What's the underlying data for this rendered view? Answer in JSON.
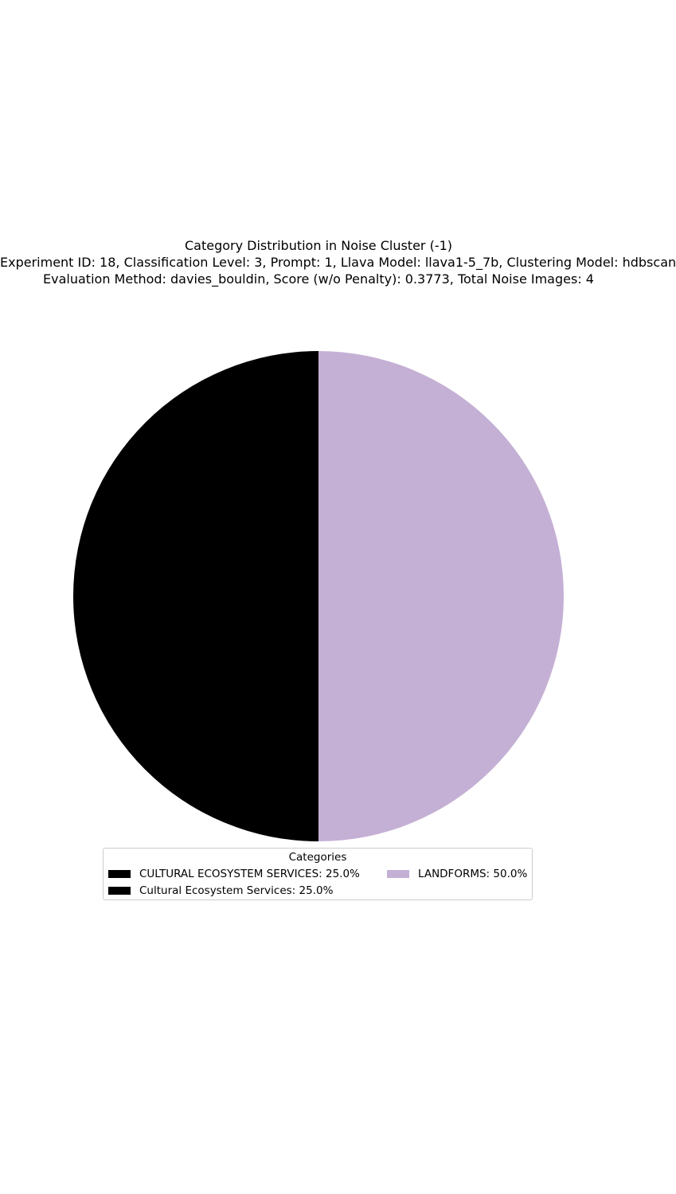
{
  "chart_data": {
    "type": "pie",
    "title_lines": [
      "Category Distribution in Noise Cluster (-1)",
      "Experiment ID: 18, Classification Level: 3, Prompt: 1, Llava Model: llava1-5_7b, Clustering Model: hdbscan",
      "Evaluation Method: davies_bouldin, Score (w/o Penalty): 0.3773, Total Noise Images: 4"
    ],
    "slices": [
      {
        "label": "LANDFORMS",
        "value": 50.0,
        "color": "#c5b0d5"
      },
      {
        "label": "Cultural Ecosystem Services",
        "value": 25.0,
        "color": "#000000"
      },
      {
        "label": "CULTURAL ECOSYSTEM SERVICES",
        "value": 25.0,
        "color": "#000000"
      }
    ],
    "start_angle_deg": 90,
    "direction": "clockwise",
    "legend": {
      "title": "Categories",
      "placement": "lower-center",
      "columns": 2,
      "entries": [
        {
          "text": "CULTURAL ECOSYSTEM SERVICES: 25.0%",
          "color": "#000000"
        },
        {
          "text": "Cultural Ecosystem Services: 25.0%",
          "color": "#000000"
        },
        {
          "text": "LANDFORMS: 50.0%",
          "color": "#c5b0d5"
        }
      ]
    }
  }
}
